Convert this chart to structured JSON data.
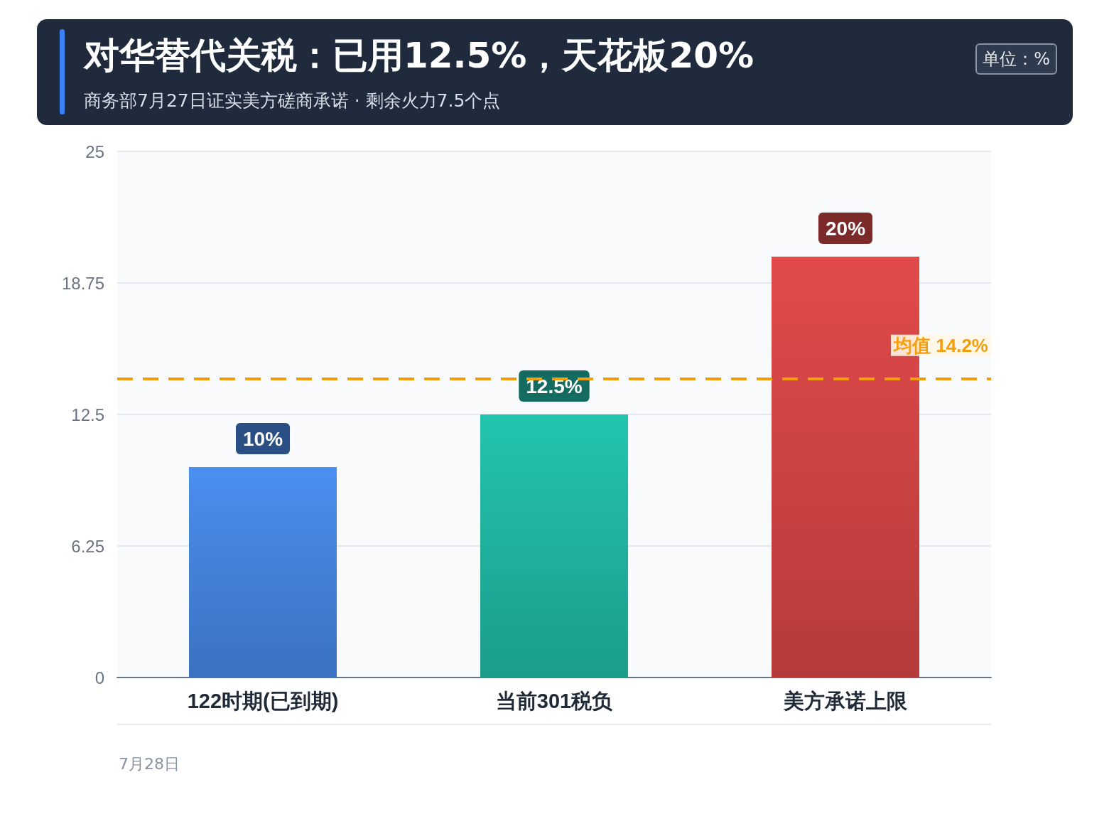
{
  "chart_data": {
    "type": "bar",
    "title": "对华替代关税：已用12.5%，天花板20%",
    "subtitle": "商务部7月27日证实美方磋商承诺 · 剩余火力7.5个点",
    "categories": [
      "122时期(已到期)",
      "当前301税负",
      "美方承诺上限"
    ],
    "values": [
      10,
      12.5,
      20
    ],
    "colors": [
      "#4a8ff0",
      "#22c4ad",
      "#e24a4a"
    ],
    "value_labels": [
      "10%",
      "12.5%",
      "20%"
    ],
    "ylim": [
      0,
      25
    ],
    "yticks": [
      0,
      6.25,
      12.5,
      18.75,
      25
    ],
    "grid": "y",
    "ref_lines": [
      {
        "axis": "y",
        "value": 14.2,
        "label": "均值 14.2%",
        "color": "#f59e0b",
        "line_style": "dashed"
      }
    ],
    "annotations": [
      "单位：%",
      "7月28日"
    ]
  }
}
